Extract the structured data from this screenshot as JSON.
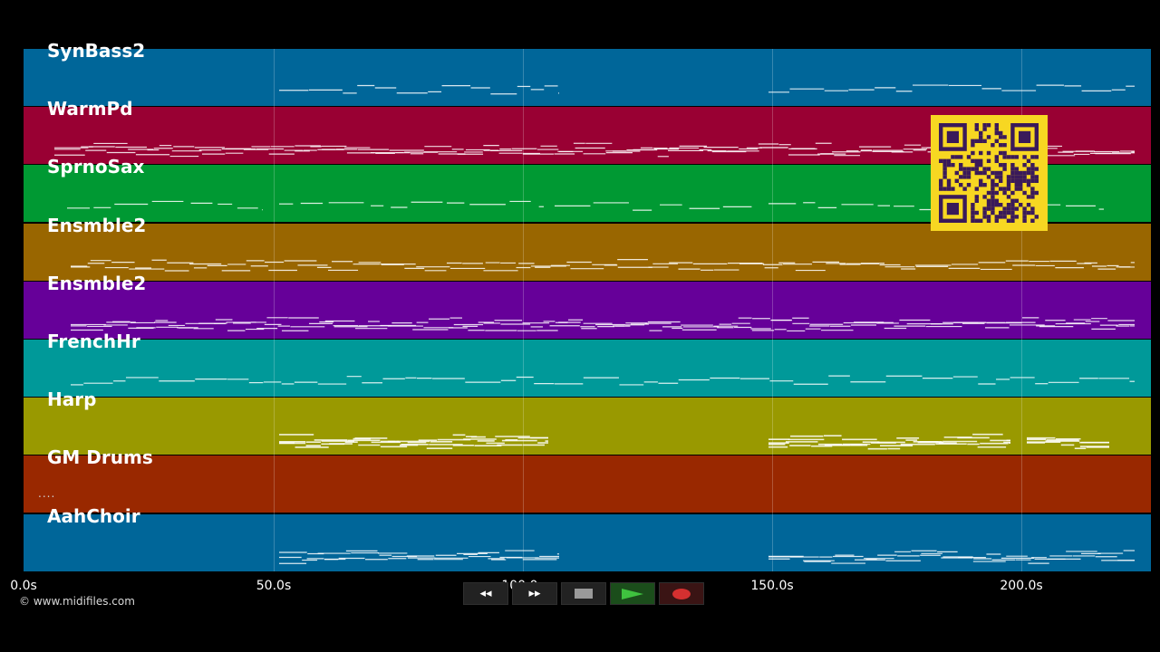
{
  "tracks": [
    {
      "name": "SynBass2",
      "color": "#006699"
    },
    {
      "name": "WarmPd",
      "color": "#990033"
    },
    {
      "name": "SprnoSax",
      "color": "#009933"
    },
    {
      "name": "Ensmble2",
      "color": "#996600"
    },
    {
      "name": "Ensmble2",
      "color": "#660099"
    },
    {
      "name": "FrenchHr",
      "color": "#009999"
    },
    {
      "name": "Harp",
      "color": "#999900"
    },
    {
      "name": "GM Drums",
      "color": "#992800"
    },
    {
      "name": "AahChoir",
      "color": "#006699"
    }
  ],
  "timeline": {
    "ticks": [
      "0.0s",
      "50.0s",
      "100.0s",
      "150.0s",
      "200.0s"
    ]
  },
  "drums_marker": "....",
  "copyright": "© www.midifiles.com",
  "controls": {
    "rewind_label": "◂◂",
    "forward_label": "▸▸",
    "stop": "stop-icon",
    "play": "play-icon",
    "record": "record-icon"
  },
  "qr": "qr-code-icon"
}
